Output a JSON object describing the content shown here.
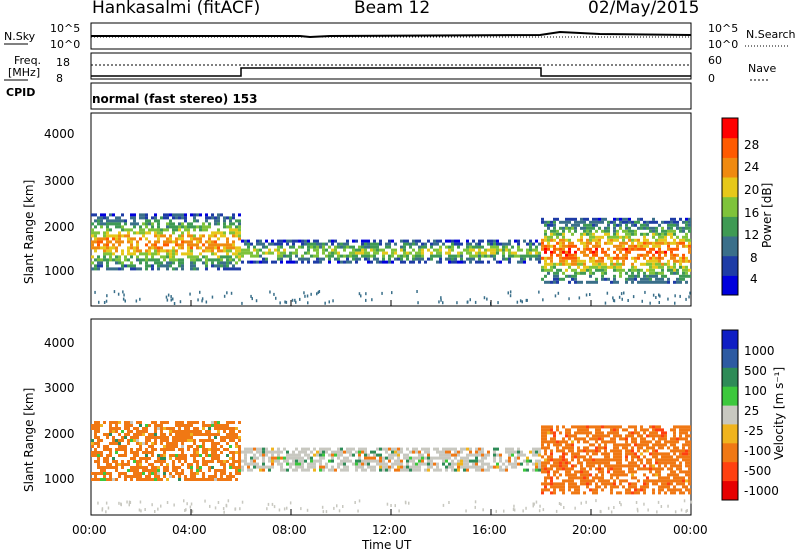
{
  "header": {
    "station": "Hankasalmi (fitACF)",
    "beam": "Beam 12",
    "date": "02/May/2015"
  },
  "noise_panel": {
    "left_label": "N.Sky",
    "left_ticks": [
      "10^5",
      "10^0"
    ],
    "right_ticks": [
      "10^5",
      "10^0"
    ],
    "right_label": "N.Search"
  },
  "freq_panel": {
    "left_label_1": "Freq.",
    "left_label_2": "[MHz]",
    "left_ticks": [
      "18",
      "8"
    ],
    "right_ticks": [
      "60",
      "0"
    ],
    "right_label": "Nave"
  },
  "cpid": {
    "label": "CPID",
    "value": "normal (fast stereo) 153"
  },
  "axes": {
    "y_label": "Slant Range [km]",
    "y_ticks": [
      "4000",
      "3000",
      "2000",
      "1000"
    ],
    "x_ticks": [
      "00:00",
      "04:00",
      "08:00",
      "12:00",
      "16:00",
      "20:00",
      "00:00"
    ],
    "x_label": "Time UT"
  },
  "power_colorbar": {
    "label": "Power [dB]",
    "ticks": [
      "28",
      "24",
      "20",
      "16",
      "12",
      "8",
      "4"
    ],
    "colors": [
      "#0000dd",
      "#1e3ca6",
      "#3a6f8a",
      "#3f9a54",
      "#7ec33a",
      "#e6c81a",
      "#f08a10",
      "#ff5a00",
      "#ff0000"
    ]
  },
  "velocity_colorbar": {
    "label": "Velocity [m s⁻¹]",
    "ticks": [
      "1000",
      "500",
      "100",
      "25",
      "-25",
      "-100",
      "-500",
      "-1000"
    ],
    "colors": [
      "#0f1fc4",
      "#2d5aa2",
      "#2e8b57",
      "#3cc83c",
      "#c8c8c0",
      "#f0b41e",
      "#f07814",
      "#ff4010",
      "#e60000"
    ]
  },
  "chart_data": [
    {
      "type": "heatmap",
      "title": "",
      "xlabel": "Time UT",
      "ylabel": "Slant Range [km]",
      "x_range": [
        "00:00",
        "24:00"
      ],
      "ylim": [
        180,
        4600
      ],
      "colorbar": "Power [dB]",
      "bands": [
        {
          "t_start_h": 0.0,
          "t_end_h": 6.0,
          "range_km": [
            1000,
            2300
          ],
          "power_db": 22
        },
        {
          "t_start_h": 6.0,
          "t_end_h": 18.0,
          "range_km": [
            1200,
            1700
          ],
          "power_db": 16
        },
        {
          "t_start_h": 18.0,
          "t_end_h": 24.0,
          "range_km": [
            700,
            2200
          ],
          "power_db": 24
        }
      ]
    },
    {
      "type": "heatmap",
      "title": "",
      "xlabel": "Time UT",
      "ylabel": "Slant Range [km]",
      "x_range": [
        "00:00",
        "24:00"
      ],
      "ylim": [
        180,
        4600
      ],
      "colorbar": "Velocity [m s⁻¹]",
      "bands": [
        {
          "t_start_h": 0.0,
          "t_end_h": 6.0,
          "range_km": [
            1000,
            2300
          ],
          "velocity": -100
        },
        {
          "t_start_h": 6.0,
          "t_end_h": 18.0,
          "range_km": [
            1200,
            1700
          ],
          "velocity": 0
        },
        {
          "t_start_h": 18.0,
          "t_end_h": 24.0,
          "range_km": [
            700,
            2200
          ],
          "velocity": -250
        }
      ]
    }
  ]
}
